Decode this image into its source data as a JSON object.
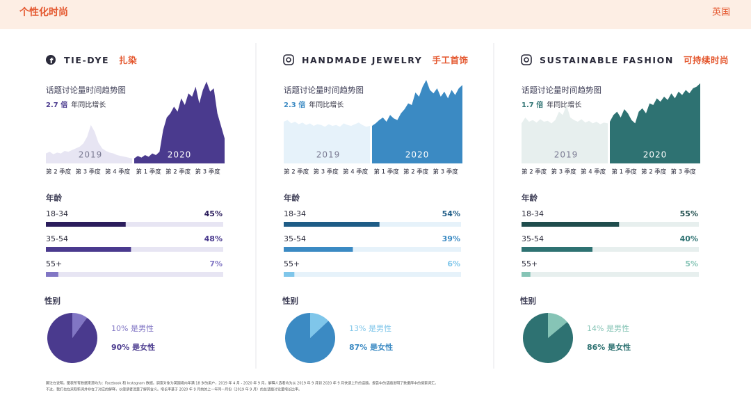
{
  "header": {
    "title": "个性化时尚",
    "region": "英国"
  },
  "panels": [
    {
      "icon": "facebook",
      "title": "TIE-DYE",
      "title_cn": "扎染",
      "colors": {
        "dark": "#2b1d5c",
        "main": "#4a3a8e",
        "light": "#8176c4",
        "pale": "#e7e5f3"
      },
      "trend": {
        "title": "话题讨论量时间趋势图",
        "growth": "2.7 倍",
        "growth_note": "年同比增长",
        "years": [
          "2019",
          "2020"
        ],
        "quarters": [
          "第 2 季度",
          "第 3 季度",
          "第 4 季度",
          "第 1 季度",
          "第 2 季度",
          "第 3 季度"
        ],
        "values_2019": [
          12,
          14,
          11,
          13,
          12,
          15,
          14,
          16,
          18,
          20,
          24,
          32,
          46,
          38,
          25,
          18,
          15,
          13,
          12,
          10,
          9,
          8,
          7,
          6
        ],
        "values_2020": [
          6,
          9,
          7,
          10,
          8,
          12,
          10,
          14,
          40,
          55,
          60,
          68,
          62,
          78,
          70,
          84,
          80,
          92,
          72,
          88,
          98,
          86,
          90,
          60,
          45,
          30
        ]
      },
      "age": {
        "title": "年龄",
        "categories": [
          "18-34",
          "35-54",
          "55+"
        ],
        "values": [
          45,
          48,
          7
        ],
        "value_labels": [
          "45%",
          "48%",
          "7%"
        ]
      },
      "gender": {
        "title": "性别",
        "values": [
          10,
          90
        ],
        "value_labels": [
          "10% 是男性",
          "90% 是女性"
        ]
      }
    },
    {
      "icon": "instagram",
      "title": "HANDMADE JEWELRY",
      "title_cn": "手工首饰",
      "colors": {
        "dark": "#1e5c86",
        "main": "#3b8ac3",
        "light": "#7fc6ea",
        "pale": "#e6f2fa"
      },
      "trend": {
        "title": "话题讨论量时间趋势图",
        "growth": "2.3 倍",
        "growth_note": "年同比增长",
        "years": [
          "2019",
          "2020"
        ],
        "quarters": [
          "第 2 季度",
          "第 3 季度",
          "第 4 季度",
          "第 1 季度",
          "第 2 季度",
          "第 3 季度"
        ],
        "values_2019": [
          50,
          52,
          48,
          50,
          47,
          49,
          46,
          48,
          45,
          47,
          46,
          44,
          47,
          45,
          46,
          44,
          48,
          46,
          45,
          47,
          49,
          46,
          44,
          45
        ],
        "values_2020": [
          45,
          48,
          52,
          55,
          50,
          58,
          54,
          52,
          60,
          65,
          72,
          70,
          85,
          80,
          92,
          100,
          88,
          84,
          90,
          80,
          86,
          78,
          88,
          82,
          90,
          94
        ]
      },
      "age": {
        "title": "年龄",
        "categories": [
          "18-34",
          "35-54",
          "55+"
        ],
        "values": [
          54,
          39,
          6
        ],
        "value_labels": [
          "54%",
          "39%",
          "6%"
        ]
      },
      "gender": {
        "title": "性别",
        "values": [
          13,
          87
        ],
        "value_labels": [
          "13% 是男性",
          "87% 是女性"
        ]
      }
    },
    {
      "icon": "instagram",
      "title": "SUSTAINABLE FASHION",
      "title_cn": "可持续时尚",
      "colors": {
        "dark": "#1f4d4d",
        "main": "#2e7272",
        "light": "#86c4b6",
        "pale": "#e7efee"
      },
      "trend": {
        "title": "话题讨论量时间趋势图",
        "growth": "1.7 倍",
        "growth_note": "年同比增长",
        "years": [
          "2019",
          "2020"
        ],
        "quarters": [
          "第 2 季度",
          "第 3 季度",
          "第 4 季度",
          "第 1 季度",
          "第 2 季度",
          "第 3 季度"
        ],
        "values_2019": [
          48,
          55,
          50,
          52,
          49,
          53,
          50,
          51,
          48,
          52,
          62,
          58,
          70,
          55,
          52,
          50,
          53,
          49,
          51,
          48,
          50,
          47,
          49,
          48
        ],
        "values_2020": [
          50,
          58,
          62,
          55,
          65,
          60,
          52,
          48,
          62,
          66,
          60,
          72,
          70,
          78,
          74,
          80,
          76,
          84,
          78,
          86,
          82,
          88,
          84,
          90,
          92,
          96
        ]
      },
      "age": {
        "title": "年龄",
        "categories": [
          "18-34",
          "35-54",
          "55+"
        ],
        "values": [
          55,
          40,
          5
        ],
        "value_labels": [
          "55%",
          "40%",
          "5%"
        ]
      },
      "gender": {
        "title": "性别",
        "values": [
          14,
          86
        ],
        "value_labels": [
          "14% 是男性",
          "86% 是女性"
        ]
      }
    }
  ],
  "footnote": [
    "脚注在说明。图表所有数据来源均为：Facebook 和 Instagram 数据。调查对象为英国境内年满 18 岁的用户，2019 年 4 月 - 2020 年 9 月。解释人选者均为从 2019 年 9 月到 2020 年 9 月快速上升的话题。报告中的话题说明了数据库中的搜索词汇。",
    "不过，我们也在采取新词并非在了对应的解释，以便读者清楚了解其含义。增长率基于 2020 年 9 月前的上一年同一月份（2019 年 9 月）的总话题讨论量增长比率。"
  ]
}
